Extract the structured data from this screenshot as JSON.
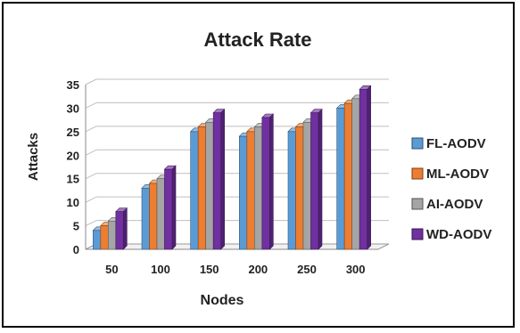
{
  "chart_data": {
    "type": "bar",
    "title": "Attack Rate",
    "xlabel": "Nodes",
    "ylabel": "Attacks",
    "categories": [
      "50",
      "100",
      "150",
      "200",
      "250",
      "300"
    ],
    "ylim": [
      0,
      35
    ],
    "yticks": [
      "0",
      "5",
      "10",
      "15",
      "20",
      "25",
      "30",
      "35"
    ],
    "grid": true,
    "legend_position": "right",
    "style": "3d-clustered-column",
    "series": [
      {
        "name": "FL-AODV",
        "color": "#5B9BD5",
        "values": [
          4,
          13,
          25,
          24,
          25,
          30
        ]
      },
      {
        "name": "ML-AODV",
        "color": "#ED7D31",
        "values": [
          5,
          14,
          26,
          25,
          26,
          31
        ]
      },
      {
        "name": "AI-AODV",
        "color": "#A5A5A5",
        "values": [
          6,
          15,
          27,
          26,
          27,
          32
        ]
      },
      {
        "name": "WD-AODV",
        "color": "#7030A0",
        "values": [
          8,
          17,
          29,
          28,
          29,
          34
        ]
      }
    ]
  }
}
